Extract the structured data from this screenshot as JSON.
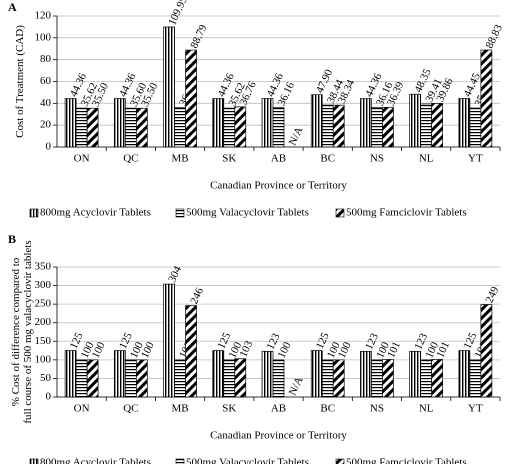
{
  "chart_data": [
    {
      "type": "bar",
      "panel": "A",
      "ylabel": [
        "Cost of Treatment (CAD)"
      ],
      "xlabel": "Canadian Province or Territory",
      "categories": [
        "ON",
        "QC",
        "MB",
        "SK",
        "AB",
        "BC",
        "NS",
        "NL",
        "YT"
      ],
      "ylim": [
        0,
        120
      ],
      "yticks": [
        0,
        20,
        40,
        60,
        80,
        100,
        120
      ],
      "grid": true,
      "series": [
        {
          "name": "800mg Acyclovir Tablets",
          "color": "#000000",
          "pattern": "vertical",
          "values": [
            44.36,
            44.36,
            109.95,
            44.36,
            44.36,
            47.9,
            44.36,
            48.35,
            44.45
          ],
          "value_labels": [
            "44.36",
            "44.36",
            "109.95",
            "44.36",
            "44.36",
            "47.90",
            "44.36",
            "48.35",
            "44.45"
          ]
        },
        {
          "name": "500mg Valacyclovir Tablets",
          "color": "#000000",
          "pattern": "horizontal",
          "values": [
            35.62,
            35.6,
            36.1,
            35.62,
            36.16,
            38.44,
            36.16,
            39.41,
            35.7
          ],
          "value_labels": [
            "35.62",
            "35.60",
            "36.1",
            "35.62",
            "36.16",
            "38.44",
            "36.16",
            "39.41",
            "35.70"
          ]
        },
        {
          "name": "500mg Famciclovir Tablets",
          "color": "#000000",
          "pattern": "diagonal",
          "values": [
            35.5,
            35.5,
            88.79,
            36.76,
            null,
            38.34,
            36.39,
            39.86,
            88.83
          ],
          "value_labels": [
            "35.50",
            "35.50",
            "88.79",
            "36.76",
            "N/A",
            "38.34",
            "36.39",
            "39.86",
            "88.83"
          ]
        }
      ]
    },
    {
      "type": "bar",
      "panel": "B",
      "ylabel": [
        "% Cost of difference compared to",
        "full course of 500 mg valacyclovir tablets"
      ],
      "xlabel": "Canadian Province or Territory",
      "categories": [
        "ON",
        "QC",
        "MB",
        "SK",
        "AB",
        "BC",
        "NS",
        "NL",
        "YT"
      ],
      "ylim": [
        0,
        350
      ],
      "yticks": [
        0,
        50,
        100,
        150,
        200,
        250,
        300,
        350
      ],
      "grid": true,
      "series": [
        {
          "name": "800mg Acyclovir Tablets",
          "color": "#000000",
          "pattern": "vertical",
          "values": [
            125,
            125,
            304,
            125,
            123,
            125,
            123,
            123,
            125
          ],
          "value_labels": [
            "125",
            "125",
            "304",
            "125",
            "123",
            "125",
            "123",
            "123",
            "125"
          ]
        },
        {
          "name": "500mg Valacyclovir Tablets",
          "color": "#000000",
          "pattern": "horizontal",
          "values": [
            100,
            100,
            100,
            100,
            100,
            100,
            100,
            100,
            100
          ],
          "value_labels": [
            "100",
            "100",
            "100",
            "100",
            "100",
            "100",
            "100",
            "100",
            "100"
          ]
        },
        {
          "name": "500mg Famciclovir Tablets",
          "color": "#000000",
          "pattern": "diagonal",
          "values": [
            100,
            100,
            246,
            103,
            null,
            100,
            101,
            101,
            249
          ],
          "value_labels": [
            "100",
            "100",
            "246",
            "103",
            "N/A",
            "100",
            "101",
            "101",
            "249"
          ]
        }
      ]
    }
  ]
}
